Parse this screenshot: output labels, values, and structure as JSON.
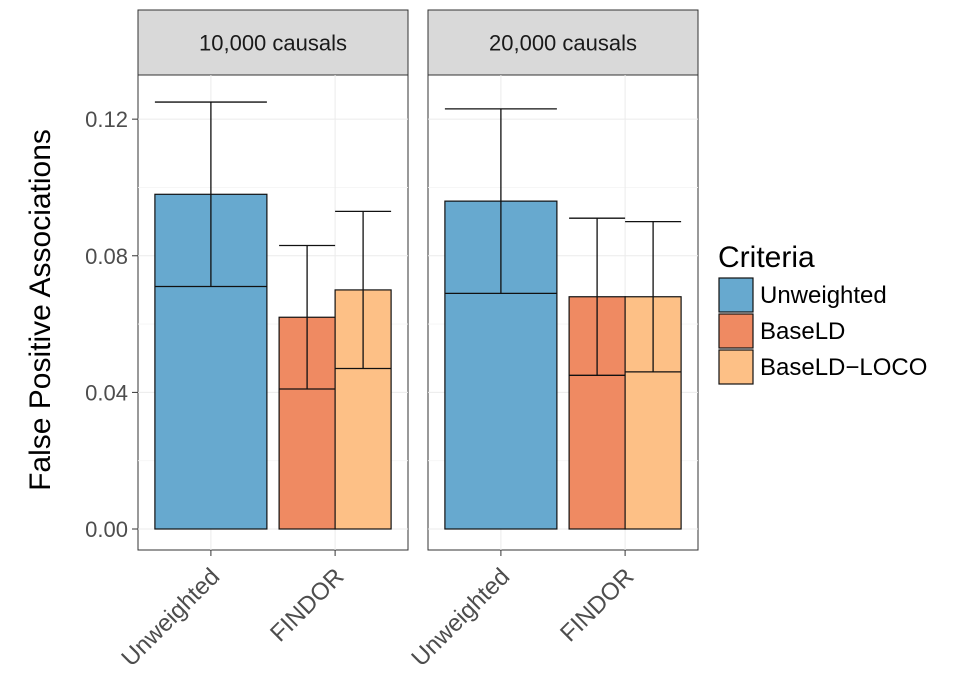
{
  "chart_data": {
    "type": "bar",
    "ylabel": "False Positive Associations",
    "ylim": [
      0,
      0.13
    ],
    "yticks": [
      0.0,
      0.04,
      0.08,
      0.12
    ],
    "ytick_labels": [
      "0.00",
      "0.04",
      "0.08",
      "0.12"
    ],
    "categories": [
      "Unweighted",
      "FINDOR"
    ],
    "legend": {
      "title": "Criteria",
      "position": "right",
      "entries": [
        {
          "name": "Unweighted",
          "color": "#67a9cf"
        },
        {
          "name": "BaseLD",
          "color": "#ef8a62"
        },
        {
          "name": "BaseLD−LOCO",
          "color": "#fdc086"
        }
      ]
    },
    "panels": [
      {
        "title": "10,000 causals",
        "bars": [
          {
            "category": "Unweighted",
            "criteria": "Unweighted",
            "value": 0.098,
            "mid": 0.071,
            "err_high": 0.125
          },
          {
            "category": "FINDOR",
            "criteria": "BaseLD",
            "value": 0.062,
            "mid": 0.041,
            "err_high": 0.083
          },
          {
            "category": "FINDOR",
            "criteria": "BaseLD−LOCO",
            "value": 0.07,
            "mid": 0.047,
            "err_high": 0.093
          }
        ]
      },
      {
        "title": "20,000 causals",
        "bars": [
          {
            "category": "Unweighted",
            "criteria": "Unweighted",
            "value": 0.096,
            "mid": 0.069,
            "err_high": 0.123
          },
          {
            "category": "FINDOR",
            "criteria": "BaseLD",
            "value": 0.068,
            "mid": 0.045,
            "err_high": 0.091
          },
          {
            "category": "FINDOR",
            "criteria": "BaseLD−LOCO",
            "value": 0.068,
            "mid": 0.046,
            "err_high": 0.09
          }
        ]
      }
    ]
  }
}
